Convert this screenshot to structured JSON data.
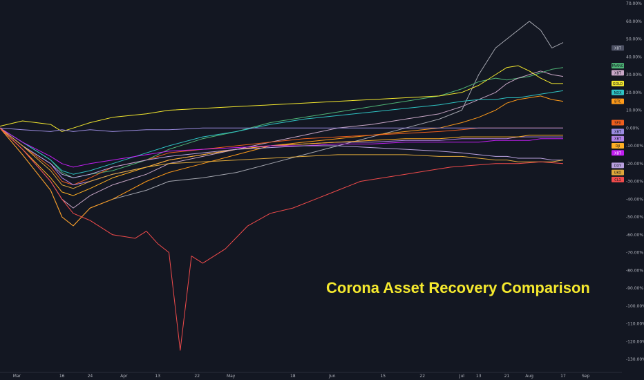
{
  "title": "Corona Asset Recovery Comparison",
  "colors": {
    "background": "#131722",
    "grid": "#1e2230",
    "axis_text": "#b2b5be",
    "title": "#f5e92e"
  },
  "chart_data": {
    "type": "line",
    "title": "Corona Asset Recovery Comparison",
    "xlabel": "",
    "ylabel": "",
    "y_unit": "%",
    "ylim": [
      -130,
      70
    ],
    "grid": false,
    "legend": "right-axis badges",
    "x_ticks": [
      "Mar",
      "16",
      "24",
      "Apr",
      "13",
      "22",
      "May",
      "18",
      "Jun",
      "15",
      "22",
      "Jul",
      "13",
      "21",
      "Aug",
      "17",
      "Sep"
    ],
    "y_ticks": [
      "70.00%",
      "60.00%",
      "50.00%",
      "40.00%",
      "30.00%",
      "20.00%",
      "10.00%",
      "0.00%",
      "-10.00%",
      "-20.00%",
      "-30.00%",
      "-40.00%",
      "-50.00%",
      "-60.00%",
      "-70.00%",
      "-80.00%",
      "-90.00%",
      "-100.00%",
      "-110.00%",
      "-120.00%",
      "-130.00%"
    ],
    "y_tick_values": [
      70,
      60,
      50,
      40,
      30,
      20,
      10,
      0,
      -10,
      -20,
      -30,
      -40,
      -50,
      -60,
      -70,
      -80,
      -90,
      -100,
      -110,
      -120,
      -130
    ],
    "x_tick_pos": [
      0.03,
      0.11,
      0.16,
      0.22,
      0.28,
      0.35,
      0.41,
      0.52,
      0.59,
      0.68,
      0.75,
      0.82,
      0.85,
      0.9,
      0.94,
      1.0,
      1.04
    ],
    "series": [
      {
        "name": "XBT",
        "color": "#a5a7b0",
        "x": [
          0,
          0.04,
          0.09,
          0.11,
          0.13,
          0.16,
          0.2,
          0.26,
          0.3,
          0.36,
          0.42,
          0.48,
          0.54,
          0.6,
          0.66,
          0.72,
          0.78,
          0.82,
          0.85,
          0.88,
          0.9,
          0.92,
          0.94,
          0.96,
          0.98,
          1.0
        ],
        "y": [
          0,
          -15,
          -35,
          -50,
          -55,
          -45,
          -40,
          -35,
          -30,
          -28,
          -25,
          -20,
          -15,
          -10,
          -5,
          0,
          5,
          10,
          30,
          45,
          50,
          55,
          60,
          55,
          45,
          48
        ]
      },
      {
        "name": "FAANG",
        "color": "#4fb576",
        "x": [
          0,
          0.04,
          0.09,
          0.11,
          0.13,
          0.16,
          0.2,
          0.26,
          0.3,
          0.36,
          0.42,
          0.48,
          0.54,
          0.6,
          0.66,
          0.72,
          0.78,
          0.82,
          0.85,
          0.88,
          0.9,
          0.92,
          0.94,
          0.96,
          0.98,
          1.0
        ],
        "y": [
          0,
          -8,
          -18,
          -25,
          -28,
          -26,
          -24,
          -18,
          -12,
          -6,
          -2,
          3,
          6,
          9,
          12,
          15,
          18,
          22,
          26,
          28,
          27,
          28,
          29,
          31,
          33,
          34
        ]
      },
      {
        "name": "XBT",
        "color": "#c9a7c7",
        "x": [
          0,
          0.04,
          0.09,
          0.11,
          0.13,
          0.16,
          0.2,
          0.26,
          0.3,
          0.36,
          0.42,
          0.48,
          0.54,
          0.6,
          0.66,
          0.72,
          0.78,
          0.82,
          0.85,
          0.88,
          0.9,
          0.92,
          0.94,
          0.96,
          0.98,
          1.0
        ],
        "y": [
          0,
          -12,
          -30,
          -40,
          -45,
          -38,
          -32,
          -26,
          -20,
          -16,
          -12,
          -8,
          -4,
          0,
          2,
          5,
          8,
          12,
          16,
          20,
          25,
          28,
          30,
          32,
          30,
          29
        ]
      },
      {
        "name": "GOLD",
        "color": "#f5e92e",
        "x": [
          0,
          0.04,
          0.09,
          0.11,
          0.13,
          0.16,
          0.2,
          0.26,
          0.3,
          0.36,
          0.42,
          0.48,
          0.54,
          0.6,
          0.66,
          0.72,
          0.78,
          0.82,
          0.85,
          0.88,
          0.9,
          0.92,
          0.94,
          0.96,
          0.98,
          1.0
        ],
        "y": [
          1,
          4,
          2,
          -2,
          0,
          3,
          6,
          8,
          10,
          11,
          12,
          13,
          14,
          15,
          16,
          17,
          18,
          20,
          24,
          30,
          34,
          35,
          32,
          28,
          25,
          25
        ]
      },
      {
        "name": "NDX",
        "color": "#2fc4c4",
        "x": [
          0,
          0.04,
          0.09,
          0.11,
          0.13,
          0.16,
          0.2,
          0.26,
          0.3,
          0.36,
          0.42,
          0.48,
          0.54,
          0.6,
          0.66,
          0.72,
          0.78,
          0.82,
          0.85,
          0.88,
          0.9,
          0.92,
          0.94,
          0.96,
          0.98,
          1.0
        ],
        "y": [
          0,
          -8,
          -18,
          -24,
          -26,
          -24,
          -20,
          -14,
          -10,
          -5,
          -2,
          2,
          5,
          7,
          9,
          11,
          13,
          15,
          16,
          16,
          17,
          17,
          18,
          19,
          20,
          21
        ]
      },
      {
        "name": "BTC",
        "color": "#ff9b19",
        "x": [
          0,
          0.04,
          0.09,
          0.11,
          0.13,
          0.16,
          0.2,
          0.26,
          0.3,
          0.36,
          0.42,
          0.48,
          0.54,
          0.6,
          0.66,
          0.72,
          0.78,
          0.82,
          0.85,
          0.88,
          0.9,
          0.92,
          0.94,
          0.96,
          0.98,
          1.0
        ],
        "y": [
          0,
          -15,
          -35,
          -50,
          -55,
          -45,
          -40,
          -30,
          -25,
          -20,
          -15,
          -10,
          -8,
          -6,
          -4,
          -2,
          0,
          3,
          6,
          10,
          14,
          16,
          17,
          18,
          16,
          15
        ]
      },
      {
        "name": "SPX",
        "color": "#f05f1d",
        "x": [
          0,
          0.04,
          0.09,
          0.11,
          0.13,
          0.16,
          0.2,
          0.26,
          0.3,
          0.36,
          0.42,
          0.48,
          0.54,
          0.6,
          0.66,
          0.72,
          0.78,
          0.82,
          0.85,
          0.88,
          0.9,
          0.92,
          0.94,
          0.96,
          0.98,
          1.0
        ],
        "y": [
          0,
          -10,
          -22,
          -30,
          -32,
          -28,
          -22,
          -18,
          -14,
          -12,
          -10,
          -8,
          -6,
          -5,
          -4,
          -3,
          -2,
          -1,
          0,
          0,
          0,
          0,
          0,
          0,
          0,
          0
        ]
      },
      {
        "name": "XBT",
        "color": "#9b8ce0",
        "x": [
          0,
          0.04,
          0.09,
          0.11,
          0.13,
          0.16,
          0.2,
          0.26,
          0.3,
          0.36,
          0.42,
          0.48,
          0.54,
          0.6,
          0.66,
          0.72,
          0.78,
          0.82,
          0.85,
          0.88,
          0.9,
          0.92,
          0.94,
          0.96,
          0.98,
          1.0
        ],
        "y": [
          0,
          -1,
          -2,
          -1,
          -2,
          -1,
          -2,
          -1,
          -1,
          0,
          0,
          0,
          0,
          0,
          0,
          0,
          0,
          0,
          0,
          0,
          0,
          0,
          0,
          0,
          0,
          0
        ]
      },
      {
        "name": "XBT",
        "color": "#b183e6",
        "x": [
          0,
          0.04,
          0.09,
          0.11,
          0.13,
          0.16,
          0.2,
          0.26,
          0.3,
          0.36,
          0.42,
          0.48,
          0.54,
          0.6,
          0.66,
          0.72,
          0.78,
          0.82,
          0.85,
          0.88,
          0.9,
          0.92,
          0.94,
          0.96,
          0.98,
          1.0
        ],
        "y": [
          0,
          -10,
          -20,
          -28,
          -32,
          -30,
          -26,
          -22,
          -18,
          -15,
          -12,
          -10,
          -9,
          -8,
          -8,
          -7,
          -7,
          -6,
          -6,
          -6,
          -6,
          -5,
          -5,
          -5,
          -5,
          -5
        ]
      },
      {
        "name": "DJI",
        "color": "#ffb023",
        "x": [
          0,
          0.04,
          0.09,
          0.11,
          0.13,
          0.16,
          0.2,
          0.26,
          0.3,
          0.36,
          0.42,
          0.48,
          0.54,
          0.6,
          0.66,
          0.72,
          0.78,
          0.82,
          0.85,
          0.88,
          0.9,
          0.92,
          0.94,
          0.96,
          0.98,
          1.0
        ],
        "y": [
          0,
          -12,
          -28,
          -36,
          -38,
          -34,
          -28,
          -22,
          -18,
          -15,
          -12,
          -10,
          -9,
          -8,
          -7,
          -6,
          -6,
          -5,
          -5,
          -5,
          -5,
          -5,
          -4,
          -4,
          -4,
          -4
        ]
      },
      {
        "name": "XBT",
        "color": "#c21ef2",
        "x": [
          0,
          0.04,
          0.09,
          0.11,
          0.13,
          0.16,
          0.2,
          0.26,
          0.3,
          0.36,
          0.42,
          0.48,
          0.54,
          0.6,
          0.66,
          0.72,
          0.78,
          0.82,
          0.85,
          0.88,
          0.9,
          0.92,
          0.94,
          0.96,
          0.98,
          1.0
        ],
        "y": [
          0,
          -8,
          -16,
          -20,
          -22,
          -20,
          -18,
          -15,
          -13,
          -12,
          -11,
          -10,
          -10,
          -9,
          -9,
          -8,
          -8,
          -8,
          -8,
          -7,
          -7,
          -7,
          -7,
          -6,
          -6,
          -6
        ]
      },
      {
        "name": "DXY",
        "color": "#b9a1de",
        "x": [
          0,
          0.04,
          0.09,
          0.11,
          0.13,
          0.16,
          0.2,
          0.26,
          0.3,
          0.36,
          0.42,
          0.48,
          0.54,
          0.6,
          0.66,
          0.72,
          0.78,
          0.82,
          0.85,
          0.88,
          0.9,
          0.92,
          0.94,
          0.96,
          0.98,
          1.0
        ],
        "y": [
          0,
          -10,
          -20,
          -26,
          -28,
          -26,
          -22,
          -18,
          -16,
          -14,
          -12,
          -11,
          -10,
          -10,
          -11,
          -12,
          -13,
          -14,
          -15,
          -16,
          -16,
          -17,
          -17,
          -17,
          -18,
          -18
        ]
      },
      {
        "name": "UKO",
        "color": "#e0a93a",
        "x": [
          0,
          0.04,
          0.09,
          0.11,
          0.13,
          0.16,
          0.2,
          0.26,
          0.3,
          0.36,
          0.42,
          0.48,
          0.54,
          0.6,
          0.66,
          0.72,
          0.78,
          0.82,
          0.85,
          0.88,
          0.9,
          0.92,
          0.94,
          0.96,
          0.98,
          1.0
        ],
        "y": [
          0,
          -10,
          -24,
          -32,
          -34,
          -30,
          -26,
          -22,
          -20,
          -19,
          -18,
          -17,
          -16,
          -15,
          -15,
          -15,
          -16,
          -16,
          -17,
          -18,
          -18,
          -19,
          -19,
          -19,
          -19,
          -18
        ]
      },
      {
        "name": "CL1",
        "color": "#f24b4b",
        "x": [
          0,
          0.04,
          0.09,
          0.11,
          0.13,
          0.16,
          0.2,
          0.24,
          0.26,
          0.28,
          0.3,
          0.32,
          0.34,
          0.36,
          0.4,
          0.44,
          0.48,
          0.52,
          0.56,
          0.6,
          0.64,
          0.68,
          0.72,
          0.76,
          0.8,
          0.84,
          0.88,
          0.92,
          0.96,
          1.0
        ],
        "y": [
          0,
          -12,
          -30,
          -40,
          -48,
          -52,
          -60,
          -62,
          -58,
          -65,
          -70,
          -125,
          -72,
          -76,
          -68,
          -55,
          -48,
          -45,
          -40,
          -35,
          -30,
          -28,
          -26,
          -24,
          -22,
          -21,
          -20,
          -20,
          -19,
          -20
        ]
      }
    ],
    "labels": [
      {
        "text": "XBT",
        "bg": "#4c5063",
        "fg": "#d1d4dc",
        "y": 45
      },
      {
        "text": "FAANG",
        "bg": "#4fb576",
        "fg": "#0e1420",
        "y": 35
      },
      {
        "text": "XBT",
        "bg": "#c9a7c7",
        "fg": "#0e1420",
        "y": 31
      },
      {
        "text": "GOLD",
        "bg": "#f5e92e",
        "fg": "#0e1420",
        "y": 25
      },
      {
        "text": "NDX",
        "bg": "#2fc4c4",
        "fg": "#0e1420",
        "y": 20
      },
      {
        "text": "BTC",
        "bg": "#ff9b19",
        "fg": "#0e1420",
        "y": 15
      },
      {
        "text": "SPX",
        "bg": "#f05f1d",
        "fg": "#0e1420",
        "y": 3
      },
      {
        "text": "XBT",
        "bg": "#9b8ce0",
        "fg": "#0e1420",
        "y": -2
      },
      {
        "text": "XBT",
        "bg": "#b183e6",
        "fg": "#0e1420",
        "y": -6
      },
      {
        "text": "DJI",
        "bg": "#ffb023",
        "fg": "#0e1420",
        "y": -10
      },
      {
        "text": "XBT",
        "bg": "#c21ef2",
        "fg": "#ffffff",
        "y": -14
      },
      {
        "text": "DXY",
        "bg": "#b9a1de",
        "fg": "#0e1420",
        "y": -21
      },
      {
        "text": "UKO",
        "bg": "#e0a93a",
        "fg": "#0e1420",
        "y": -25
      },
      {
        "text": "CL1",
        "bg": "#f24b4b",
        "fg": "#0e1420",
        "y": -29
      }
    ]
  }
}
